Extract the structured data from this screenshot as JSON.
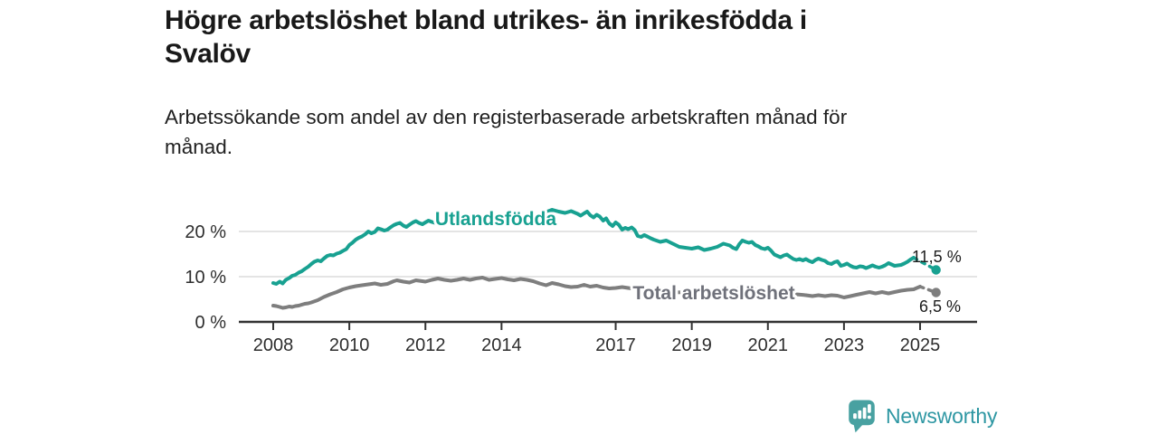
{
  "title": {
    "full": "Högre arbetslöshet bland utrikes- än inrikesfödda i Svalöv",
    "lines": [
      "Högre arbetslöshet bland utrikes- än inrikesfödda i",
      "Svalöv"
    ]
  },
  "subtitle": {
    "full": "Arbetssökande som andel av den registerbaserade arbetskraften månad för månad.",
    "lines": [
      "Arbetssökande som andel av den registerbaserade arbetskraften månad för",
      "månad."
    ]
  },
  "logo": {
    "text": "Newsworthy",
    "icon": "newsworthy-bubble-chart-icon",
    "icon_color": "#48a1a1",
    "text_color": "#2e97a3"
  },
  "chart_data": {
    "type": "line",
    "title": "Högre arbetslöshet bland utrikes- än inrikesfödda i Svalöv",
    "xlabel": "",
    "ylabel": "",
    "y_unit": "%",
    "ylim": [
      0,
      26
    ],
    "xlim": [
      2007.1,
      2026.6
    ],
    "grid": "horizontal",
    "legend_position": "inline-labels",
    "yticks": [
      {
        "value": 0,
        "label": "0 %"
      },
      {
        "value": 10,
        "label": "10 %"
      },
      {
        "value": 20,
        "label": "20 %"
      }
    ],
    "xticks": [
      {
        "value": 2008,
        "label": "2008"
      },
      {
        "value": 2010,
        "label": "2010"
      },
      {
        "value": 2012,
        "label": "2012"
      },
      {
        "value": 2014,
        "label": "2014"
      },
      {
        "value": 2017,
        "label": "2017"
      },
      {
        "value": 2019,
        "label": "2019"
      },
      {
        "value": 2021,
        "label": "2021"
      },
      {
        "value": 2023,
        "label": "2023"
      },
      {
        "value": 2025,
        "label": "2025"
      }
    ],
    "series": [
      {
        "name": "Utlandsfödda",
        "color": "#18a191",
        "label_color": "#18a191",
        "end_value": 11.5,
        "end_label": "11,5 %",
        "points": [
          [
            2008.0,
            8.6
          ],
          [
            2008.08,
            8.4
          ],
          [
            2008.17,
            8.9
          ],
          [
            2008.25,
            8.5
          ],
          [
            2008.33,
            9.3
          ],
          [
            2008.42,
            9.7
          ],
          [
            2008.5,
            10.2
          ],
          [
            2008.58,
            10.4
          ],
          [
            2008.67,
            10.9
          ],
          [
            2008.75,
            11.2
          ],
          [
            2008.83,
            11.7
          ],
          [
            2008.92,
            12.2
          ],
          [
            2009.0,
            12.8
          ],
          [
            2009.08,
            13.3
          ],
          [
            2009.17,
            13.6
          ],
          [
            2009.25,
            13.4
          ],
          [
            2009.33,
            14.0
          ],
          [
            2009.42,
            14.6
          ],
          [
            2009.5,
            14.8
          ],
          [
            2009.58,
            14.7
          ],
          [
            2009.67,
            15.1
          ],
          [
            2009.75,
            15.3
          ],
          [
            2009.83,
            15.7
          ],
          [
            2009.92,
            16.1
          ],
          [
            2010.0,
            17.0
          ],
          [
            2010.08,
            17.5
          ],
          [
            2010.17,
            18.2
          ],
          [
            2010.25,
            18.6
          ],
          [
            2010.33,
            18.9
          ],
          [
            2010.42,
            19.4
          ],
          [
            2010.5,
            20.0
          ],
          [
            2010.58,
            19.6
          ],
          [
            2010.67,
            19.9
          ],
          [
            2010.75,
            20.7
          ],
          [
            2010.83,
            20.5
          ],
          [
            2010.92,
            20.2
          ],
          [
            2011.0,
            20.4
          ],
          [
            2011.08,
            20.9
          ],
          [
            2011.17,
            21.4
          ],
          [
            2011.25,
            21.7
          ],
          [
            2011.33,
            21.9
          ],
          [
            2011.42,
            21.3
          ],
          [
            2011.5,
            21.0
          ],
          [
            2011.58,
            21.5
          ],
          [
            2011.67,
            22.0
          ],
          [
            2011.75,
            22.3
          ],
          [
            2011.83,
            21.9
          ],
          [
            2011.92,
            21.6
          ],
          [
            2012.0,
            22.0
          ],
          [
            2012.08,
            22.4
          ],
          [
            2012.17,
            22.1
          ],
          [
            2012.25,
            21.9
          ],
          [
            2012.33,
            21.7
          ],
          [
            2012.42,
            21.9
          ],
          [
            2012.5,
            22.1
          ],
          [
            2012.58,
            22.4
          ],
          [
            2012.67,
            22.0
          ],
          [
            2012.75,
            21.5
          ],
          [
            2012.83,
            21.3
          ],
          [
            2012.92,
            21.6
          ],
          [
            2013.0,
            22.0
          ],
          [
            2013.17,
            22.3
          ],
          [
            2013.33,
            22.6
          ],
          [
            2013.5,
            22.2
          ],
          [
            2013.67,
            21.9
          ],
          [
            2013.83,
            22.1
          ],
          [
            2014.0,
            22.4
          ],
          [
            2014.17,
            22.7
          ],
          [
            2014.33,
            22.5
          ],
          [
            2014.5,
            22.9
          ],
          [
            2014.67,
            23.2
          ],
          [
            2014.83,
            23.5
          ],
          [
            2015.0,
            23.9
          ],
          [
            2015.17,
            24.3
          ],
          [
            2015.33,
            24.8
          ],
          [
            2015.5,
            24.4
          ],
          [
            2015.67,
            24.1
          ],
          [
            2015.83,
            24.5
          ],
          [
            2016.0,
            23.9
          ],
          [
            2016.08,
            23.5
          ],
          [
            2016.17,
            24.0
          ],
          [
            2016.25,
            24.4
          ],
          [
            2016.33,
            23.6
          ],
          [
            2016.42,
            23.1
          ],
          [
            2016.5,
            23.7
          ],
          [
            2016.58,
            23.3
          ],
          [
            2016.67,
            22.4
          ],
          [
            2016.75,
            22.9
          ],
          [
            2016.83,
            21.8
          ],
          [
            2016.92,
            21.2
          ],
          [
            2017.0,
            22.0
          ],
          [
            2017.08,
            21.5
          ],
          [
            2017.17,
            20.4
          ],
          [
            2017.25,
            20.8
          ],
          [
            2017.33,
            20.5
          ],
          [
            2017.42,
            20.9
          ],
          [
            2017.5,
            20.3
          ],
          [
            2017.58,
            19.0
          ],
          [
            2017.67,
            18.8
          ],
          [
            2017.75,
            19.2
          ],
          [
            2017.83,
            18.9
          ],
          [
            2017.92,
            18.5
          ],
          [
            2018.0,
            18.2
          ],
          [
            2018.17,
            17.7
          ],
          [
            2018.33,
            18.0
          ],
          [
            2018.5,
            17.3
          ],
          [
            2018.67,
            16.6
          ],
          [
            2018.83,
            16.4
          ],
          [
            2019.0,
            16.2
          ],
          [
            2019.17,
            16.5
          ],
          [
            2019.33,
            15.9
          ],
          [
            2019.5,
            16.2
          ],
          [
            2019.67,
            16.6
          ],
          [
            2019.83,
            17.3
          ],
          [
            2020.0,
            16.9
          ],
          [
            2020.08,
            16.4
          ],
          [
            2020.17,
            16.1
          ],
          [
            2020.25,
            17.2
          ],
          [
            2020.33,
            18.0
          ],
          [
            2020.42,
            17.7
          ],
          [
            2020.5,
            17.5
          ],
          [
            2020.58,
            17.7
          ],
          [
            2020.67,
            17.0
          ],
          [
            2020.75,
            16.7
          ],
          [
            2020.83,
            16.3
          ],
          [
            2020.92,
            16.1
          ],
          [
            2021.0,
            16.4
          ],
          [
            2021.08,
            15.8
          ],
          [
            2021.17,
            14.9
          ],
          [
            2021.25,
            14.6
          ],
          [
            2021.33,
            14.3
          ],
          [
            2021.42,
            14.7
          ],
          [
            2021.5,
            14.9
          ],
          [
            2021.58,
            14.4
          ],
          [
            2021.67,
            13.9
          ],
          [
            2021.75,
            13.7
          ],
          [
            2021.83,
            13.9
          ],
          [
            2021.92,
            13.6
          ],
          [
            2022.0,
            13.9
          ],
          [
            2022.08,
            13.5
          ],
          [
            2022.17,
            13.2
          ],
          [
            2022.25,
            13.7
          ],
          [
            2022.33,
            14.0
          ],
          [
            2022.42,
            13.7
          ],
          [
            2022.5,
            13.5
          ],
          [
            2022.58,
            13.0
          ],
          [
            2022.67,
            12.8
          ],
          [
            2022.75,
            13.2
          ],
          [
            2022.83,
            13.4
          ],
          [
            2022.92,
            12.4
          ],
          [
            2023.0,
            12.6
          ],
          [
            2023.08,
            12.9
          ],
          [
            2023.17,
            12.4
          ],
          [
            2023.25,
            12.1
          ],
          [
            2023.33,
            12.0
          ],
          [
            2023.42,
            12.3
          ],
          [
            2023.5,
            12.2
          ],
          [
            2023.58,
            11.9
          ],
          [
            2023.67,
            12.2
          ],
          [
            2023.75,
            12.5
          ],
          [
            2023.83,
            12.2
          ],
          [
            2023.92,
            12.0
          ],
          [
            2024.0,
            12.2
          ],
          [
            2024.08,
            12.5
          ],
          [
            2024.17,
            13.0
          ],
          [
            2024.25,
            12.7
          ],
          [
            2024.33,
            12.4
          ],
          [
            2024.5,
            12.6
          ],
          [
            2024.58,
            12.9
          ],
          [
            2024.67,
            13.3
          ],
          [
            2024.75,
            13.8
          ],
          [
            2024.83,
            14.2
          ]
        ],
        "dashed_tail": [
          [
            2024.83,
            14.2
          ],
          [
            2025.42,
            11.5
          ]
        ]
      },
      {
        "name": "Total arbetslöshet",
        "color": "#7e7e7e",
        "label_color": "#6f717a",
        "end_value": 6.5,
        "end_label": "6,5 %",
        "points": [
          [
            2008.0,
            3.6
          ],
          [
            2008.08,
            3.5
          ],
          [
            2008.17,
            3.3
          ],
          [
            2008.25,
            3.1
          ],
          [
            2008.33,
            3.2
          ],
          [
            2008.42,
            3.4
          ],
          [
            2008.5,
            3.3
          ],
          [
            2008.58,
            3.5
          ],
          [
            2008.67,
            3.6
          ],
          [
            2008.75,
            3.8
          ],
          [
            2008.83,
            4.0
          ],
          [
            2008.92,
            4.1
          ],
          [
            2009.0,
            4.3
          ],
          [
            2009.17,
            4.8
          ],
          [
            2009.33,
            5.5
          ],
          [
            2009.5,
            6.1
          ],
          [
            2009.67,
            6.6
          ],
          [
            2009.83,
            7.2
          ],
          [
            2010.0,
            7.6
          ],
          [
            2010.17,
            7.9
          ],
          [
            2010.33,
            8.1
          ],
          [
            2010.5,
            8.3
          ],
          [
            2010.67,
            8.5
          ],
          [
            2010.83,
            8.2
          ],
          [
            2011.0,
            8.4
          ],
          [
            2011.17,
            9.0
          ],
          [
            2011.25,
            9.2
          ],
          [
            2011.42,
            8.9
          ],
          [
            2011.58,
            8.7
          ],
          [
            2011.75,
            9.2
          ],
          [
            2011.92,
            9.0
          ],
          [
            2012.0,
            8.9
          ],
          [
            2012.17,
            9.3
          ],
          [
            2012.33,
            9.6
          ],
          [
            2012.5,
            9.3
          ],
          [
            2012.67,
            9.1
          ],
          [
            2012.83,
            9.3
          ],
          [
            2013.0,
            9.6
          ],
          [
            2013.17,
            9.3
          ],
          [
            2013.33,
            9.6
          ],
          [
            2013.5,
            9.8
          ],
          [
            2013.67,
            9.3
          ],
          [
            2013.83,
            9.5
          ],
          [
            2014.0,
            9.7
          ],
          [
            2014.17,
            9.4
          ],
          [
            2014.33,
            9.2
          ],
          [
            2014.5,
            9.5
          ],
          [
            2014.67,
            9.3
          ],
          [
            2014.83,
            9.0
          ],
          [
            2015.0,
            8.5
          ],
          [
            2015.17,
            8.1
          ],
          [
            2015.33,
            8.6
          ],
          [
            2015.5,
            8.3
          ],
          [
            2015.67,
            7.9
          ],
          [
            2015.83,
            7.7
          ],
          [
            2016.0,
            7.8
          ],
          [
            2016.17,
            8.2
          ],
          [
            2016.33,
            7.8
          ],
          [
            2016.5,
            8.0
          ],
          [
            2016.67,
            7.6
          ],
          [
            2016.83,
            7.4
          ],
          [
            2017.0,
            7.5
          ],
          [
            2017.17,
            7.7
          ],
          [
            2017.33,
            7.5
          ],
          [
            2017.5,
            7.3
          ],
          [
            2017.67,
            7.1
          ],
          [
            2017.83,
            7.3
          ],
          [
            2018.0,
            7.0
          ],
          [
            2018.25,
            6.8
          ],
          [
            2018.5,
            6.6
          ],
          [
            2018.75,
            6.5
          ],
          [
            2019.0,
            6.3
          ],
          [
            2019.25,
            6.2
          ],
          [
            2019.5,
            6.4
          ],
          [
            2019.75,
            6.6
          ],
          [
            2020.0,
            6.8
          ],
          [
            2020.25,
            7.5
          ],
          [
            2020.5,
            7.3
          ],
          [
            2020.75,
            7.1
          ],
          [
            2021.0,
            7.0
          ],
          [
            2021.25,
            6.7
          ],
          [
            2021.5,
            6.4
          ],
          [
            2021.75,
            6.1
          ],
          [
            2022.0,
            5.9
          ],
          [
            2022.17,
            5.7
          ],
          [
            2022.33,
            5.9
          ],
          [
            2022.5,
            5.7
          ],
          [
            2022.67,
            5.9
          ],
          [
            2022.83,
            5.8
          ],
          [
            2023.0,
            5.4
          ],
          [
            2023.17,
            5.7
          ],
          [
            2023.33,
            6.0
          ],
          [
            2023.5,
            6.3
          ],
          [
            2023.67,
            6.6
          ],
          [
            2023.83,
            6.3
          ],
          [
            2024.0,
            6.6
          ],
          [
            2024.17,
            6.3
          ],
          [
            2024.33,
            6.6
          ],
          [
            2024.5,
            6.9
          ],
          [
            2024.67,
            7.1
          ],
          [
            2024.83,
            7.2
          ],
          [
            2025.0,
            7.8
          ]
        ],
        "dashed_tail": [
          [
            2025.0,
            7.8
          ],
          [
            2025.42,
            6.5
          ]
        ]
      }
    ]
  }
}
